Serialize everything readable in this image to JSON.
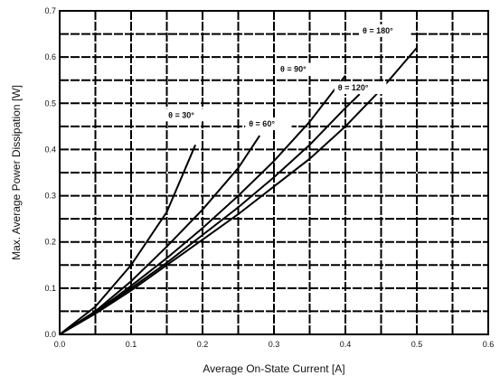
{
  "chart_data": {
    "type": "line",
    "xlabel": "Average On-State Current [A]",
    "ylabel": "Max. Average Power Dissipation [W]",
    "xlim": [
      0,
      0.6
    ],
    "ylim": [
      0,
      0.7
    ],
    "x_ticks": [
      "0.0",
      "0.1",
      "0.2",
      "0.3",
      "0.4",
      "0.5",
      "0.6"
    ],
    "y_ticks": [
      "0.0",
      "0.1",
      "0.2",
      "0.3",
      "0.4",
      "0.5",
      "0.6",
      "0.7"
    ],
    "grid": true,
    "series": [
      {
        "name": "θ = 30°",
        "points": [
          [
            0,
            0
          ],
          [
            0.05,
            0.06
          ],
          [
            0.1,
            0.15
          ],
          [
            0.15,
            0.265
          ],
          [
            0.19,
            0.41
          ]
        ]
      },
      {
        "name": "θ = 60°",
        "points": [
          [
            0,
            0
          ],
          [
            0.05,
            0.05
          ],
          [
            0.1,
            0.115
          ],
          [
            0.15,
            0.19
          ],
          [
            0.2,
            0.27
          ],
          [
            0.25,
            0.36
          ],
          [
            0.28,
            0.43
          ]
        ]
      },
      {
        "name": "θ = 90°",
        "points": [
          [
            0,
            0
          ],
          [
            0.05,
            0.048
          ],
          [
            0.1,
            0.105
          ],
          [
            0.15,
            0.165
          ],
          [
            0.2,
            0.23
          ],
          [
            0.25,
            0.3
          ],
          [
            0.3,
            0.375
          ],
          [
            0.35,
            0.46
          ],
          [
            0.4,
            0.56
          ]
        ]
      },
      {
        "name": "θ = 120°",
        "points": [
          [
            0,
            0
          ],
          [
            0.05,
            0.047
          ],
          [
            0.1,
            0.1
          ],
          [
            0.15,
            0.155
          ],
          [
            0.2,
            0.215
          ],
          [
            0.25,
            0.275
          ],
          [
            0.3,
            0.34
          ],
          [
            0.35,
            0.41
          ],
          [
            0.4,
            0.49
          ],
          [
            0.42,
            0.52
          ]
        ]
      },
      {
        "name": "θ = 180°",
        "points": [
          [
            0,
            0
          ],
          [
            0.05,
            0.045
          ],
          [
            0.1,
            0.095
          ],
          [
            0.15,
            0.15
          ],
          [
            0.2,
            0.205
          ],
          [
            0.25,
            0.26
          ],
          [
            0.3,
            0.32
          ],
          [
            0.35,
            0.38
          ],
          [
            0.4,
            0.45
          ],
          [
            0.45,
            0.53
          ],
          [
            0.5,
            0.62
          ]
        ]
      }
    ],
    "annotations": [
      {
        "text": "θ = 30°",
        "series": 0
      },
      {
        "text": "θ = 60°",
        "series": 1
      },
      {
        "text": "θ = 90°",
        "series": 2
      },
      {
        "text": "θ = 120°",
        "series": 3
      },
      {
        "text": "θ = 180°",
        "series": 4
      }
    ]
  }
}
